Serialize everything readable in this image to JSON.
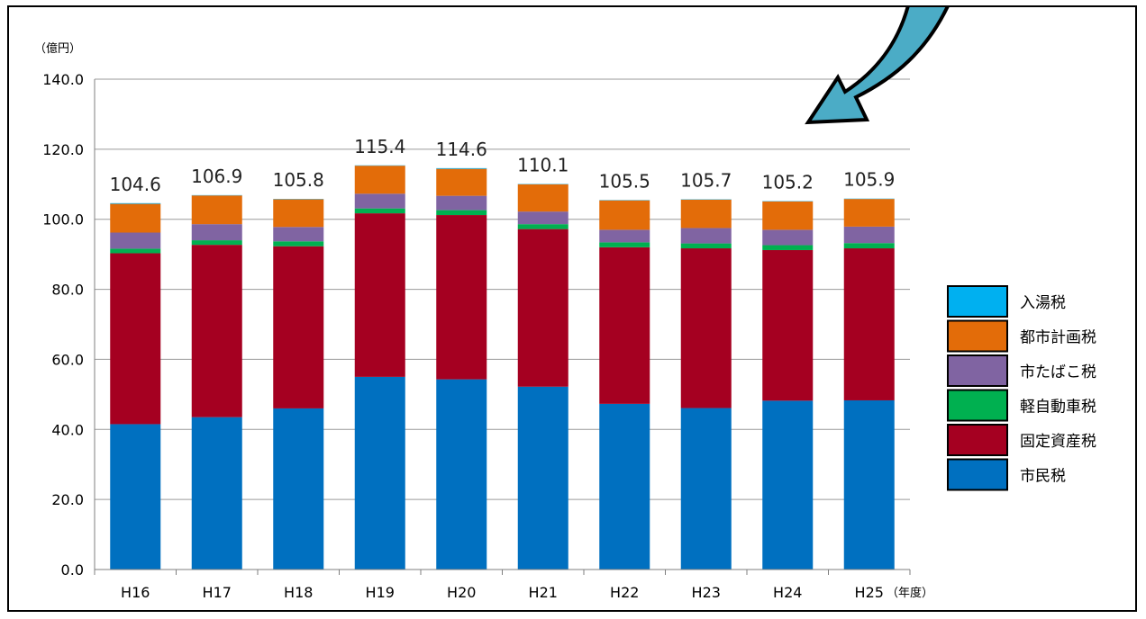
{
  "chart_data": {
    "type": "bar",
    "stacked": true,
    "y_unit": "（億円）",
    "x_unit": "（年度）",
    "ylim": [
      0,
      140
    ],
    "yticks": [
      "0.0",
      "20.0",
      "40.0",
      "60.0",
      "80.0",
      "100.0",
      "120.0",
      "140.0"
    ],
    "grid": true,
    "legend_position": "right",
    "categories": [
      "H16",
      "H17",
      "H18",
      "H19",
      "H20",
      "H21",
      "H22",
      "H23",
      "H24",
      "H25"
    ],
    "totals": [
      "104.6",
      "106.9",
      "105.8",
      "115.4",
      "114.6",
      "110.1",
      "105.5",
      "105.7",
      "105.2",
      "105.9"
    ],
    "series": [
      {
        "name": "市民税",
        "color": "#0070c0",
        "values": [
          41.5,
          43.5,
          46.0,
          55.0,
          54.3,
          52.2,
          47.3,
          46.1,
          48.2,
          48.3
        ]
      },
      {
        "name": "固定資産税",
        "color": "#a50021",
        "values": [
          48.8,
          49.2,
          46.3,
          46.7,
          46.9,
          45.0,
          44.7,
          45.6,
          43.0,
          43.4
        ]
      },
      {
        "name": "軽自動車税",
        "color": "#00b050",
        "values": [
          1.3,
          1.3,
          1.4,
          1.4,
          1.4,
          1.4,
          1.4,
          1.4,
          1.4,
          1.5
        ]
      },
      {
        "name": "市たばこ税",
        "color": "#8064a2",
        "values": [
          4.6,
          4.6,
          4.1,
          4.2,
          4.1,
          3.6,
          3.6,
          4.4,
          4.4,
          4.7
        ]
      },
      {
        "name": "都市計画税",
        "color": "#e36c09",
        "values": [
          8.2,
          8.2,
          7.9,
          8.0,
          7.7,
          7.8,
          8.4,
          8.1,
          8.1,
          7.9
        ]
      },
      {
        "name": "入湯税",
        "color": "#00b0f0",
        "values": [
          0.2,
          0.1,
          0.1,
          0.1,
          0.2,
          0.1,
          0.1,
          0.1,
          0.1,
          0.1
        ]
      }
    ],
    "legend_order": [
      "入湯税",
      "都市計画税",
      "市たばこ税",
      "軽自動車税",
      "固定資産税",
      "市民税"
    ],
    "arrow_color": "#4bacc6"
  }
}
